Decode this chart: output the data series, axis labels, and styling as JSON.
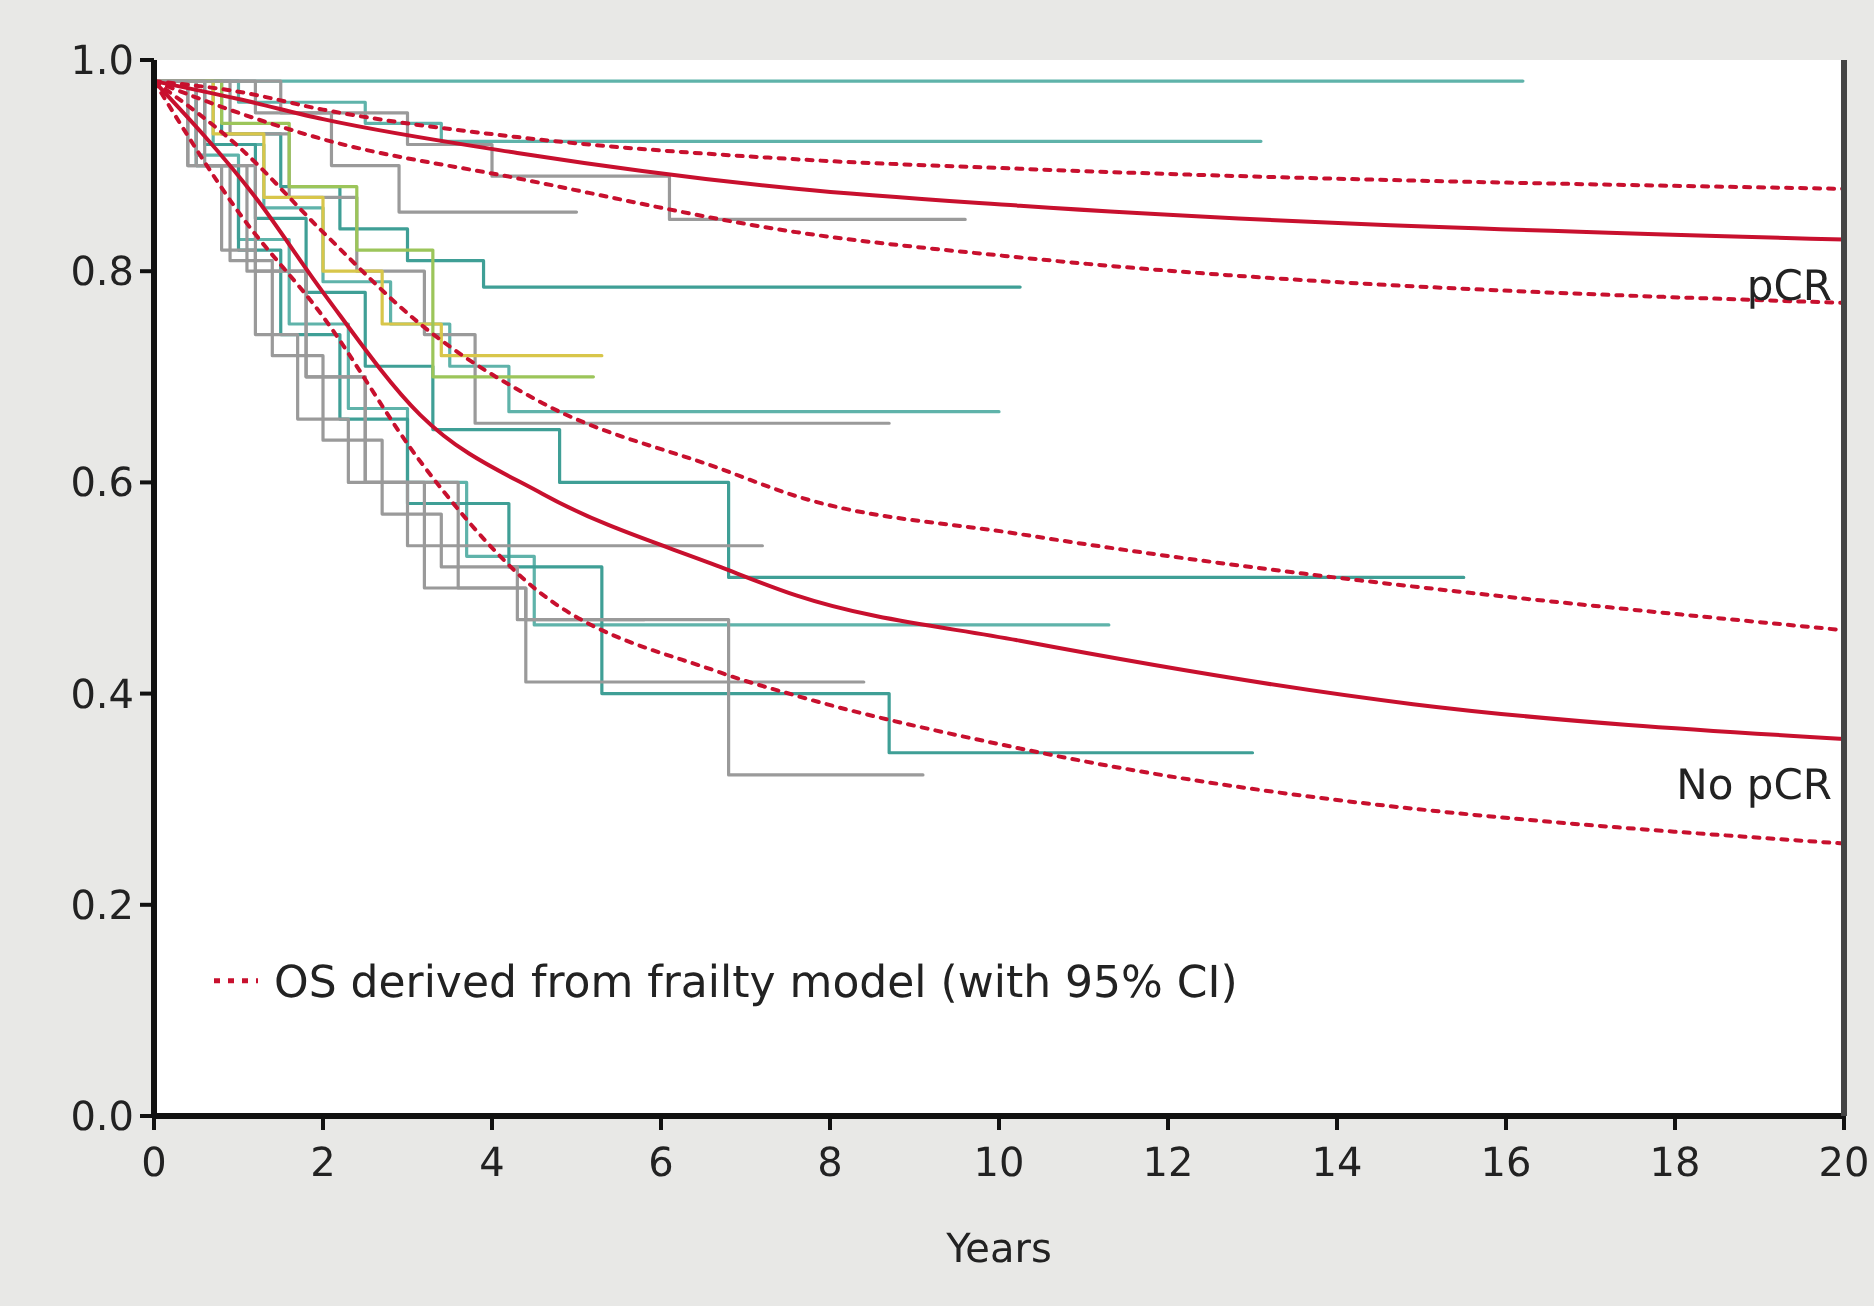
{
  "chart_data": {
    "type": "step",
    "xlabel": "Years",
    "xlim": [
      0,
      20
    ],
    "xticks": [
      0,
      2,
      4,
      6,
      8,
      10,
      12,
      14,
      16,
      18,
      20
    ],
    "ylim": [
      0,
      1
    ],
    "yticks": [
      {
        "value": 0,
        "label": "0.0"
      },
      0.2,
      0.4,
      0.6,
      0.8,
      {
        "value": 1,
        "label": "1.0"
      }
    ],
    "grid": false,
    "legend": "bottom left",
    "series": [
      {
        "color": "#5fb3aa",
        "x": [
          0,
          16.2
        ],
        "values": [
          0.98,
          0.98
        ]
      },
      {
        "color": "#5fb3aa",
        "x": [
          0,
          1,
          2.5,
          3.4,
          13.1
        ],
        "values": [
          0.98,
          0.96,
          0.94,
          0.923,
          0.923
        ]
      },
      {
        "color": "#9a9a9a",
        "x": [
          0,
          1.5,
          3,
          4,
          6.1,
          9.6
        ],
        "values": [
          0.98,
          0.95,
          0.92,
          0.89,
          0.849,
          0.849
        ]
      },
      {
        "color": "#3f9f96",
        "x": [
          0,
          0.8,
          1.5,
          2.2,
          3,
          3.9,
          10.25
        ],
        "values": [
          0.98,
          0.93,
          0.88,
          0.84,
          0.81,
          0.785,
          0.785
        ]
      },
      {
        "color": "#5fb3aa",
        "x": [
          0,
          0.7,
          1.3,
          2,
          2.8,
          3.5,
          4.2,
          10
        ],
        "values": [
          0.98,
          0.92,
          0.86,
          0.79,
          0.75,
          0.71,
          0.667,
          0.667
        ]
      },
      {
        "color": "#9a9a9a",
        "x": [
          0,
          0.9,
          1.6,
          2.4,
          3.2,
          3.8,
          8.7
        ],
        "values": [
          0.98,
          0.93,
          0.87,
          0.8,
          0.74,
          0.656,
          0.656
        ]
      },
      {
        "color": "#3f9f96",
        "x": [
          0,
          0.6,
          1.2,
          1.8,
          2.5,
          3.3,
          4.8,
          6.8,
          15.5
        ],
        "values": [
          0.98,
          0.92,
          0.85,
          0.78,
          0.71,
          0.65,
          0.6,
          0.51,
          0.51
        ]
      },
      {
        "color": "#5fb3aa",
        "x": [
          0,
          0.5,
          1,
          1.6,
          2.3,
          3,
          3.7,
          4.5,
          11.3
        ],
        "values": [
          0.98,
          0.91,
          0.83,
          0.75,
          0.67,
          0.6,
          0.53,
          0.465,
          0.465
        ]
      },
      {
        "color": "#3f9f96",
        "x": [
          0,
          0.5,
          1,
          1.5,
          2.2,
          3,
          4.2,
          5.3,
          8.7,
          13
        ],
        "values": [
          0.98,
          0.9,
          0.82,
          0.74,
          0.66,
          0.58,
          0.52,
          0.4,
          0.344,
          0.344
        ]
      },
      {
        "color": "#9a9a9a",
        "x": [
          0,
          0.4,
          0.9,
          1.4,
          2,
          2.7,
          3.4,
          4.3,
          6.8,
          9.1
        ],
        "values": [
          0.98,
          0.9,
          0.81,
          0.72,
          0.64,
          0.57,
          0.52,
          0.47,
          0.323,
          0.323
        ]
      },
      {
        "color": "#9a9a9a",
        "x": [
          0,
          0.5,
          1.1,
          1.8,
          2.5,
          3.2,
          4.4,
          8.4
        ],
        "values": [
          0.98,
          0.9,
          0.8,
          0.7,
          0.6,
          0.5,
          0.411,
          0.411
        ]
      },
      {
        "color": "#d8c64a",
        "x": [
          0,
          0.7,
          1.3,
          2,
          2.7,
          3.4,
          5.3
        ],
        "values": [
          0.98,
          0.93,
          0.87,
          0.8,
          0.75,
          0.72,
          0.72
        ]
      },
      {
        "color": "#9cc55a",
        "x": [
          0,
          0.8,
          1.6,
          2.4,
          3.3,
          5.2
        ],
        "values": [
          0.98,
          0.94,
          0.88,
          0.82,
          0.7,
          0.7
        ]
      },
      {
        "color": "#9a9a9a",
        "x": [
          0,
          1.2,
          2.1,
          2.9,
          5
        ],
        "values": [
          0.98,
          0.95,
          0.9,
          0.856,
          0.856
        ]
      },
      {
        "color": "#9a9a9a",
        "x": [
          0,
          0.6,
          1.2,
          1.8,
          2.5,
          3,
          7.2
        ],
        "values": [
          0.98,
          0.9,
          0.8,
          0.7,
          0.6,
          0.54,
          0.54
        ]
      },
      {
        "color": "#9a9a9a",
        "x": [
          0,
          0.4,
          0.8,
          1.2,
          1.7,
          2.3,
          3.6,
          4.4,
          5.8
        ],
        "values": [
          0.98,
          0.9,
          0.82,
          0.74,
          0.66,
          0.6,
          0.5,
          0.47,
          0.47
        ]
      },
      {
        "type": "line",
        "name": "OS derived from frailty model (with 95% CI)",
        "line_style": "dotted",
        "color": "#c8102e",
        "x": [
          0,
          1,
          2,
          4.3,
          7.6,
          10.25,
          20
        ],
        "values": [
          0.98,
          0.97,
          0.953,
          0.927,
          0.906,
          0.897,
          0.878
        ]
      },
      {
        "type": "line",
        "line_style": "dotted",
        "color": "#c8102e",
        "x": [
          0,
          1,
          2,
          4.3,
          7.6,
          10.25,
          20
        ],
        "values": [
          0.98,
          0.95,
          0.925,
          0.888,
          0.837,
          0.813,
          0.77
        ]
      },
      {
        "type": "line",
        "name": "pCR",
        "line_style": "solid",
        "color": "#c8102e",
        "x": [
          0,
          1,
          2,
          4.3,
          7.6,
          10.25,
          20
        ],
        "values": [
          0.98,
          0.963,
          0.944,
          0.912,
          0.878,
          0.862,
          0.83
        ]
      },
      {
        "type": "line",
        "line_style": "dotted",
        "color": "#c8102e",
        "x": [
          0,
          1,
          2,
          3.15,
          4.6,
          6.7,
          7.6,
          10.25,
          20
        ],
        "values": [
          0.98,
          0.918,
          0.837,
          0.75,
          0.675,
          0.613,
          0.587,
          0.551,
          0.46
        ]
      },
      {
        "type": "line",
        "line_style": "dotted",
        "color": "#c8102e",
        "x": [
          0,
          1,
          2,
          3.15,
          4.3,
          6.7,
          7.6,
          10.25,
          20
        ],
        "values": [
          0.98,
          0.856,
          0.757,
          0.62,
          0.514,
          0.42,
          0.398,
          0.348,
          0.258
        ]
      },
      {
        "type": "line",
        "name": "No pCR",
        "line_style": "solid",
        "color": "#c8102e",
        "x": [
          0,
          1.2,
          2,
          3.15,
          4.6,
          6.7,
          7.6,
          10.25,
          14.9,
          20
        ],
        "values": [
          0.98,
          0.87,
          0.78,
          0.664,
          0.589,
          0.52,
          0.493,
          0.45,
          0.39,
          0.357
        ]
      }
    ]
  }
}
